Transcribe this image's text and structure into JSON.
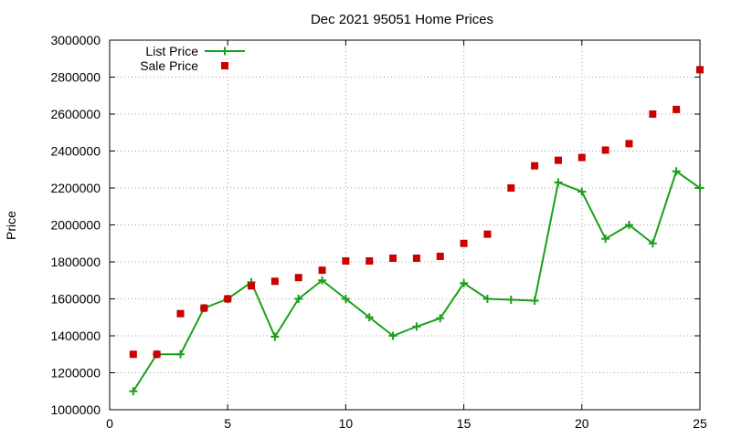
{
  "chart_data": {
    "type": "line",
    "title": "Dec 2021 95051 Home Prices",
    "xlabel": "",
    "ylabel": "Price",
    "xlim": [
      0,
      25
    ],
    "ylim": [
      1000000,
      3000000
    ],
    "x_ticks": [
      0,
      5,
      10,
      15,
      20,
      25
    ],
    "y_ticks": [
      1000000,
      1200000,
      1400000,
      1600000,
      1800000,
      2000000,
      2200000,
      2400000,
      2600000,
      2800000,
      3000000
    ],
    "grid": true,
    "legend_position": "top-left",
    "series": [
      {
        "name": "List Price",
        "style": "line-with-plus-markers",
        "color": "#1aa01a",
        "x": [
          1,
          2,
          3,
          4,
          5,
          6,
          7,
          8,
          9,
          10,
          11,
          12,
          13,
          14,
          15,
          16,
          17,
          18,
          19,
          20,
          21,
          22,
          23,
          24,
          25
        ],
        "values": [
          1100000,
          1300000,
          1300000,
          1550000,
          1600000,
          1690000,
          1395000,
          1600000,
          1700000,
          1600000,
          1500000,
          1400000,
          1450000,
          1495000,
          1685000,
          1600000,
          1595000,
          1590000,
          2230000,
          2180000,
          1925000,
          2000000,
          1900000,
          2290000,
          2200000
        ]
      },
      {
        "name": "Sale Price",
        "style": "square-markers",
        "color": "#cc0000",
        "x": [
          1,
          2,
          3,
          4,
          5,
          6,
          7,
          8,
          9,
          10,
          11,
          12,
          13,
          14,
          15,
          16,
          17,
          18,
          19,
          20,
          21,
          22,
          23,
          24,
          25
        ],
        "values": [
          1300000,
          1300000,
          1520000,
          1550000,
          1600000,
          1670000,
          1695000,
          1715000,
          1755000,
          1805000,
          1805000,
          1820000,
          1820000,
          1830000,
          1900000,
          1950000,
          2200000,
          2320000,
          2350000,
          2365000,
          2405000,
          2440000,
          2600000,
          2625000,
          2840000
        ]
      }
    ]
  }
}
